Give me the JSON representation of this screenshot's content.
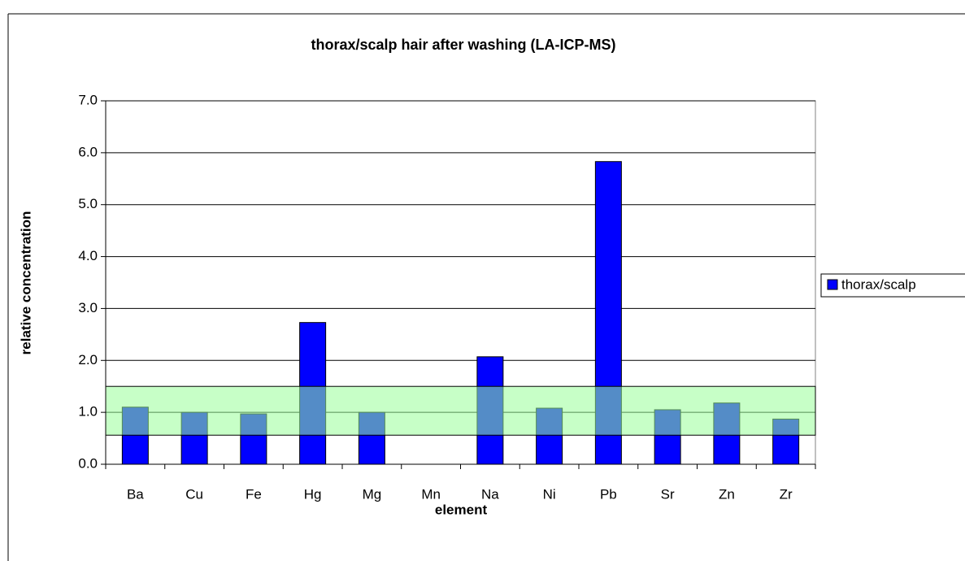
{
  "chart_data": {
    "type": "bar",
    "title": "thorax/scalp hair after washing (LA-ICP-MS)",
    "x_label": "element",
    "y_label": "relative concentration",
    "categories": [
      "Ba",
      "Cu",
      "Fe",
      "Hg",
      "Mg",
      "Mn",
      "Na",
      "Ni",
      "Pb",
      "Sr",
      "Zn",
      "Zr"
    ],
    "series": [
      {
        "name": "thorax/scalp",
        "color": "#0000ff",
        "values": [
          1.1,
          1.0,
          0.97,
          2.73,
          1.0,
          null,
          2.07,
          1.08,
          5.83,
          1.05,
          1.18,
          0.87
        ]
      }
    ],
    "ylim": [
      0,
      7
    ],
    "yticks": [
      {
        "value": 0,
        "label": "0.0"
      },
      {
        "value": 1,
        "label": "1.0"
      },
      {
        "value": 2,
        "label": "2.0"
      },
      {
        "value": 3,
        "label": "3.0"
      },
      {
        "value": 4,
        "label": "4.0"
      },
      {
        "value": 5,
        "label": "5.0"
      },
      {
        "value": 6,
        "label": "6.0"
      },
      {
        "value": 7,
        "label": "7.0"
      }
    ],
    "grid": true,
    "legend": "right",
    "highlight_band": {
      "ymin": 0.56,
      "ymax": 1.5,
      "color": "#99ff99"
    }
  }
}
